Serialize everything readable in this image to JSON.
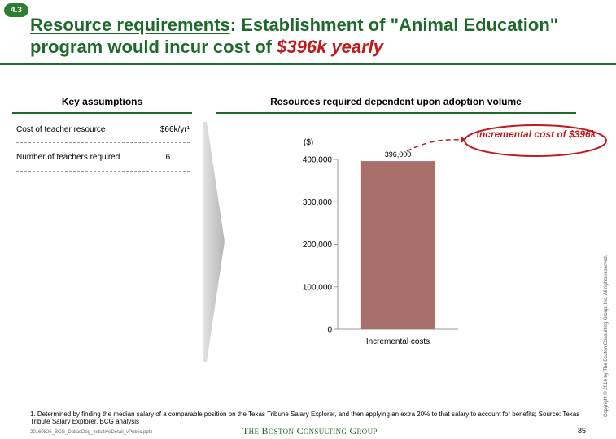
{
  "badge": "4.3",
  "title": {
    "underlined": "Resource requirements",
    "middle": ": Establishment of \"Animal Education\" program would incur cost of ",
    "highlight": "$396k yearly"
  },
  "left_section": {
    "heading": "Key assumptions",
    "rows": [
      {
        "label": "Cost of  teacher resource",
        "value": "$66k/yr¹"
      },
      {
        "label": "Number of teachers required",
        "value": "6"
      }
    ]
  },
  "right_section": {
    "heading": "Resources required dependent upon adoption volume"
  },
  "colors": {
    "accent": "#1e6a2c",
    "highlight": "#c0191e",
    "bar": "#a9706b"
  },
  "callout": {
    "text": "Incremental cost of $396k"
  },
  "chart_data": {
    "type": "bar",
    "ylabel": "($)",
    "categories": [
      "Incremental costs"
    ],
    "values": [
      396000
    ],
    "value_labels": [
      "396,000"
    ],
    "ylim": [
      0,
      400000
    ],
    "yticks": [
      0,
      100000,
      200000,
      300000,
      400000
    ],
    "ytick_labels": [
      "0",
      "100,000",
      "200,000",
      "300,000",
      "400,000"
    ],
    "grid": false
  },
  "footnote": "1. Determined by finding the median salary of a comparable position on the Texas Tribune Salary Explorer, and then applying an extra 20% to that salary to account for benefits; Source: Texas Tribute Salary Explorer, BCG analysis",
  "filename": "20160826_BCG_DallasDog_InitiativeDetail_vPublic.pptx",
  "logo": "The Boston Consulting Group",
  "page_number": "85",
  "copyright": "Copyright © 2016 by The Boston Consulting Group, Inc. All rights reserved."
}
